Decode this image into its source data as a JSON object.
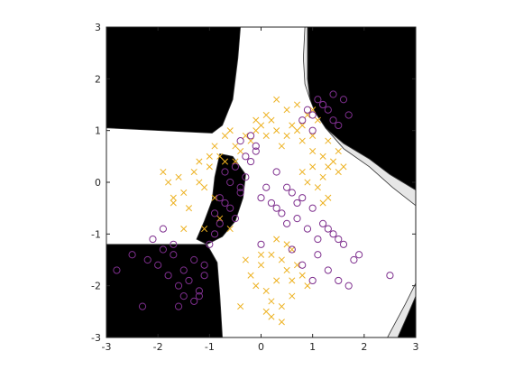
{
  "chart_data": {
    "type": "scatter",
    "title": "",
    "xlabel": "",
    "ylabel": "",
    "xlim": [
      -3,
      3
    ],
    "ylim": [
      -3,
      3
    ],
    "xticks": [
      "-3",
      "-2",
      "-1",
      "0",
      "1",
      "2",
      "3"
    ],
    "yticks": [
      "-3",
      "-2",
      "-1",
      "0",
      "1",
      "2",
      "3"
    ],
    "grid": false,
    "legend": "none",
    "background_regions": [
      {
        "name": "black-region-top-left",
        "color": "#000000",
        "polygon": [
          [
            -3,
            3
          ],
          [
            -0.4,
            3
          ],
          [
            -0.45,
            2.4
          ],
          [
            -0.55,
            1.6
          ],
          [
            -0.75,
            1.1
          ],
          [
            -0.95,
            0.95
          ],
          [
            -3,
            1.05
          ]
        ]
      },
      {
        "name": "black-region-top-right",
        "color": "#000000",
        "polygon": [
          [
            0.9,
            3
          ],
          [
            3,
            3
          ],
          [
            3,
            -0.15
          ],
          [
            2.5,
            0.15
          ],
          [
            2.1,
            0.45
          ],
          [
            1.6,
            0.75
          ],
          [
            1.25,
            1.05
          ],
          [
            1.05,
            1.35
          ],
          [
            0.95,
            1.6
          ],
          [
            0.9,
            2.0
          ]
        ]
      },
      {
        "name": "black-region-bottom-left",
        "color": "#000000",
        "polygon": [
          [
            -3,
            -3
          ],
          [
            -0.75,
            -3
          ],
          [
            -0.8,
            -2.2
          ],
          [
            -0.85,
            -1.55
          ],
          [
            -1.05,
            -1.2
          ],
          [
            -3,
            -1.2
          ]
        ]
      },
      {
        "name": "black-region-bottom-right",
        "color": "#000000",
        "polygon": [
          [
            2.65,
            -3
          ],
          [
            3,
            -3
          ],
          [
            3,
            -2.2
          ],
          [
            2.85,
            -2.55
          ]
        ]
      },
      {
        "name": "black-region-center",
        "color": "#000000",
        "polygon": [
          [
            -0.8,
            0.55
          ],
          [
            -0.55,
            0.5
          ],
          [
            -0.3,
            0.15
          ],
          [
            -0.35,
            -0.3
          ],
          [
            -0.5,
            -0.75
          ],
          [
            -0.75,
            -1.05
          ],
          [
            -1.05,
            -1.2
          ],
          [
            -1.25,
            -1.1
          ],
          [
            -1.1,
            -0.75
          ],
          [
            -0.95,
            -0.35
          ],
          [
            -0.9,
            0.1
          ]
        ]
      },
      {
        "name": "grey-band-top",
        "color": "#e6e6e6",
        "polygon": [
          [
            0.85,
            3
          ],
          [
            0.9,
            3
          ],
          [
            0.9,
            2.0
          ],
          [
            0.95,
            1.6
          ],
          [
            0.85,
            1.9
          ],
          [
            0.82,
            2.4
          ]
        ]
      },
      {
        "name": "grey-band-right",
        "color": "#e6e6e6",
        "polygon": [
          [
            3,
            -0.15
          ],
          [
            3,
            -0.45
          ],
          [
            2.55,
            -0.1
          ],
          [
            2.1,
            0.3
          ],
          [
            1.6,
            0.65
          ],
          [
            1.25,
            1.05
          ],
          [
            1.6,
            0.75
          ],
          [
            2.1,
            0.45
          ],
          [
            2.5,
            0.15
          ]
        ]
      },
      {
        "name": "grey-band-bottom-right",
        "color": "#e6e6e6",
        "polygon": [
          [
            2.45,
            -3
          ],
          [
            2.65,
            -3
          ],
          [
            2.85,
            -2.55
          ],
          [
            3,
            -2.2
          ],
          [
            3,
            -1.95
          ],
          [
            2.8,
            -2.35
          ]
        ]
      }
    ],
    "series": [
      {
        "marker": "x",
        "color": "#edb120",
        "x": [
          -1.8,
          -1.6,
          -1.5,
          -1.3,
          -1.2,
          -1.1,
          -1.0,
          -0.9,
          -0.8,
          -0.7,
          -0.6,
          -0.5,
          -0.4,
          -0.3,
          -0.2,
          -0.1,
          0.0,
          0.1,
          0.2,
          0.3,
          0.4,
          0.5,
          0.6,
          0.7,
          0.8,
          0.9,
          1.0,
          1.1,
          1.2,
          1.3,
          -1.9,
          -1.7,
          -1.4,
          -1.2,
          -1.0,
          -0.9,
          -0.7,
          0.8,
          1.0,
          1.2,
          1.4,
          1.5,
          1.1,
          1.3,
          0.9,
          1.6,
          1.2,
          1.0,
          0.2,
          0.4,
          0.6,
          0.0,
          -0.2,
          0.3,
          0.5,
          0.1,
          -0.1,
          0.6,
          0.4,
          0.2,
          0.5,
          0.3,
          0.0,
          -0.3,
          0.7,
          0.9,
          0.1,
          -0.4,
          0.2,
          0.4,
          0.6,
          0.8,
          -0.6,
          -0.8,
          -1.1,
          -1.5,
          -1.7,
          0.7,
          0.5,
          0.3,
          0.1,
          -0.1,
          1.5,
          1.3,
          1.0,
          0.8,
          -0.5
        ],
        "y": [
          0.0,
          0.1,
          -0.2,
          0.2,
          0.0,
          -0.1,
          0.3,
          -0.3,
          0.5,
          0.9,
          1.0,
          0.7,
          0.6,
          0.9,
          0.8,
          1.0,
          1.1,
          0.9,
          1.2,
          1.0,
          0.7,
          0.9,
          1.1,
          1.0,
          0.8,
          1.3,
          1.4,
          1.2,
          0.5,
          0.3,
          0.2,
          -0.4,
          -0.5,
          0.4,
          0.5,
          0.7,
          0.4,
          0.2,
          0.3,
          0.1,
          0.4,
          0.2,
          -0.1,
          -0.3,
          0.0,
          0.3,
          -0.4,
          0.6,
          -1.4,
          -1.5,
          -1.3,
          -1.6,
          -1.8,
          -1.9,
          -1.7,
          -2.1,
          -2.0,
          -2.2,
          -2.4,
          -2.3,
          -1.2,
          -1.1,
          -1.4,
          -1.5,
          -1.6,
          -2.0,
          -2.5,
          -2.4,
          -2.6,
          -2.7,
          -1.9,
          -1.8,
          -0.9,
          -0.7,
          -0.9,
          -0.9,
          -0.3,
          1.5,
          1.4,
          1.6,
          1.3,
          1.2,
          0.6,
          0.8,
          0.9,
          1.1,
          0.4
        ]
      },
      {
        "marker": "o",
        "color": "#7e2f8e",
        "x": [
          -2.2,
          -2.0,
          -1.9,
          -1.8,
          -1.7,
          -1.6,
          -1.5,
          -1.4,
          -1.3,
          -1.2,
          -1.1,
          -1.0,
          -0.9,
          -0.8,
          -2.1,
          -1.9,
          -1.7,
          -1.5,
          -1.3,
          -1.1,
          -0.9,
          -0.7,
          -0.6,
          -0.5,
          -0.4,
          -0.3,
          -0.2,
          -0.1,
          0.0,
          -0.6,
          -0.5,
          -0.7,
          -0.4,
          -0.3,
          -0.8,
          0.2,
          0.4,
          0.6,
          0.8,
          1.0,
          1.2,
          1.4,
          1.6,
          1.8,
          1.1,
          1.3,
          1.5,
          1.7,
          0.9,
          0.7,
          0.5,
          0.3,
          1.0,
          1.2,
          1.4,
          1.6,
          1.9,
          1.5,
          1.3,
          1.1,
          2.5,
          0.9,
          1.1,
          1.3,
          1.5,
          1.7,
          1.0,
          1.2,
          1.4,
          0.8,
          -2.8,
          -2.5,
          -2.3,
          -1.6,
          -1.2,
          0.1,
          0.3,
          0.5,
          0.7,
          1.0,
          0.8,
          0.6,
          0.0,
          -0.2,
          -0.4,
          -0.1
        ],
        "y": [
          -1.5,
          -1.6,
          -1.3,
          -1.8,
          -1.4,
          -2.0,
          -1.7,
          -1.9,
          -1.5,
          -2.1,
          -1.6,
          -1.2,
          -1.0,
          -0.8,
          -1.1,
          -0.9,
          -1.2,
          -2.2,
          -2.3,
          -1.8,
          -0.6,
          -0.4,
          0.0,
          0.3,
          -0.2,
          0.1,
          0.4,
          0.6,
          -0.3,
          -0.5,
          -0.7,
          0.2,
          -0.1,
          0.5,
          -0.3,
          -0.4,
          -0.6,
          -0.2,
          -0.3,
          -0.5,
          -0.8,
          -1.0,
          -1.2,
          -1.5,
          -1.4,
          -1.7,
          -1.9,
          -2.0,
          -0.9,
          -0.7,
          -0.8,
          -0.5,
          1.3,
          1.5,
          1.2,
          1.6,
          -1.4,
          -1.1,
          -0.9,
          -1.1,
          -1.8,
          1.4,
          1.6,
          1.4,
          1.1,
          1.3,
          1.0,
          1.5,
          1.7,
          1.2,
          -1.7,
          -1.4,
          -2.4,
          -2.4,
          -2.2,
          -0.1,
          0.2,
          -0.1,
          -0.4,
          -1.9,
          -1.6,
          -1.3,
          -1.2,
          0.9,
          0.8,
          0.7
        ]
      }
    ]
  }
}
